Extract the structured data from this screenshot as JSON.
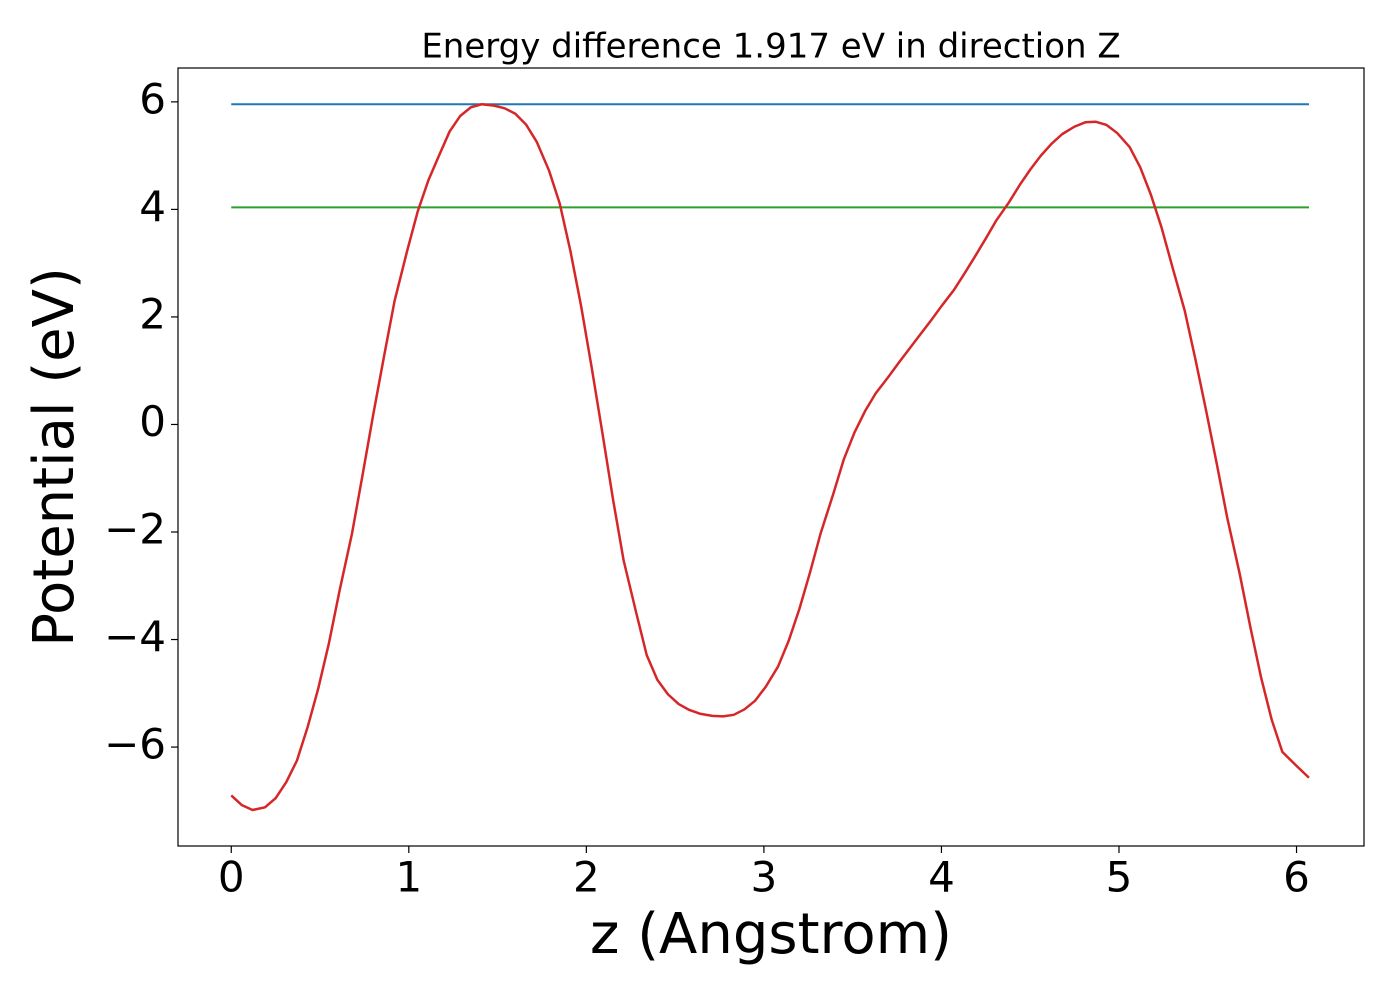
{
  "chart_data": {
    "type": "line",
    "title": "Energy difference 1.917 eV in direction Z",
    "xlabel": "z (Angstrom)",
    "ylabel": "Potential (eV)",
    "xlim": [
      -0.3,
      6.38
    ],
    "ylim": [
      -7.84,
      6.63
    ],
    "xticks": [
      0,
      1,
      2,
      3,
      4,
      5,
      6
    ],
    "yticks": [
      {
        "value": -6,
        "label": "−6"
      },
      {
        "value": -4,
        "label": "−4"
      },
      {
        "value": -2,
        "label": "−2"
      },
      0,
      2,
      4,
      6
    ],
    "series": [
      {
        "color": "#1f77b4",
        "x": [
          0,
          6.07
        ],
        "values": [
          5.955,
          5.955
        ]
      },
      {
        "color": "#2ca02c",
        "x": [
          0,
          6.07
        ],
        "values": [
          4.038,
          4.038
        ]
      },
      {
        "color": "#d62728",
        "x": [
          0,
          0.06,
          0.12,
          0.19,
          0.25,
          0.31,
          0.37,
          0.43,
          0.49,
          0.55,
          0.61,
          0.68,
          0.74,
          0.8,
          0.86,
          0.92,
          0.99,
          1.05,
          1.11,
          1.17,
          1.23,
          1.29,
          1.35,
          1.41,
          1.48,
          1.54,
          1.6,
          1.66,
          1.72,
          1.79,
          1.85,
          1.91,
          1.97,
          2.03,
          2.09,
          2.15,
          2.21,
          2.28,
          2.34,
          2.4,
          2.46,
          2.52,
          2.58,
          2.64,
          2.71,
          2.77,
          2.83,
          2.89,
          2.95,
          3.01,
          3.08,
          3.14,
          3.2,
          3.26,
          3.32,
          3.39,
          3.45,
          3.51,
          3.57,
          3.63,
          3.7,
          3.76,
          3.82,
          3.88,
          3.94,
          4.0,
          4.07,
          4.13,
          4.19,
          4.25,
          4.31,
          4.38,
          4.44,
          4.5,
          4.56,
          4.62,
          4.68,
          4.75,
          4.81,
          4.87,
          4.93,
          4.99,
          5.06,
          5.12,
          5.18,
          5.24,
          5.3,
          5.37,
          5.43,
          5.49,
          5.55,
          5.61,
          5.68,
          5.74,
          5.8,
          5.86,
          5.92,
          6.0,
          6.07
        ],
        "values": [
          -6.9,
          -7.08,
          -7.17,
          -7.12,
          -6.95,
          -6.65,
          -6.25,
          -5.63,
          -4.91,
          -4.07,
          -3.09,
          -2.03,
          -0.93,
          0.19,
          1.26,
          2.3,
          3.22,
          3.96,
          4.54,
          5.0,
          5.45,
          5.74,
          5.9,
          5.955,
          5.93,
          5.88,
          5.78,
          5.58,
          5.26,
          4.72,
          4.11,
          3.23,
          2.21,
          1.06,
          -0.15,
          -1.39,
          -2.53,
          -3.49,
          -4.29,
          -4.75,
          -5.02,
          -5.2,
          -5.31,
          -5.38,
          -5.42,
          -5.43,
          -5.4,
          -5.3,
          -5.14,
          -4.88,
          -4.5,
          -4.02,
          -3.43,
          -2.75,
          -2.02,
          -1.3,
          -0.65,
          -0.15,
          0.25,
          0.58,
          0.88,
          1.15,
          1.41,
          1.67,
          1.93,
          2.2,
          2.5,
          2.81,
          3.13,
          3.46,
          3.8,
          4.13,
          4.45,
          4.74,
          5.0,
          5.22,
          5.4,
          5.54,
          5.62,
          5.63,
          5.57,
          5.42,
          5.16,
          4.78,
          4.27,
          3.66,
          2.94,
          2.12,
          1.22,
          0.27,
          -0.72,
          -1.74,
          -2.78,
          -3.77,
          -4.7,
          -5.49,
          -6.09,
          -6.35,
          -6.57
        ]
      }
    ]
  }
}
